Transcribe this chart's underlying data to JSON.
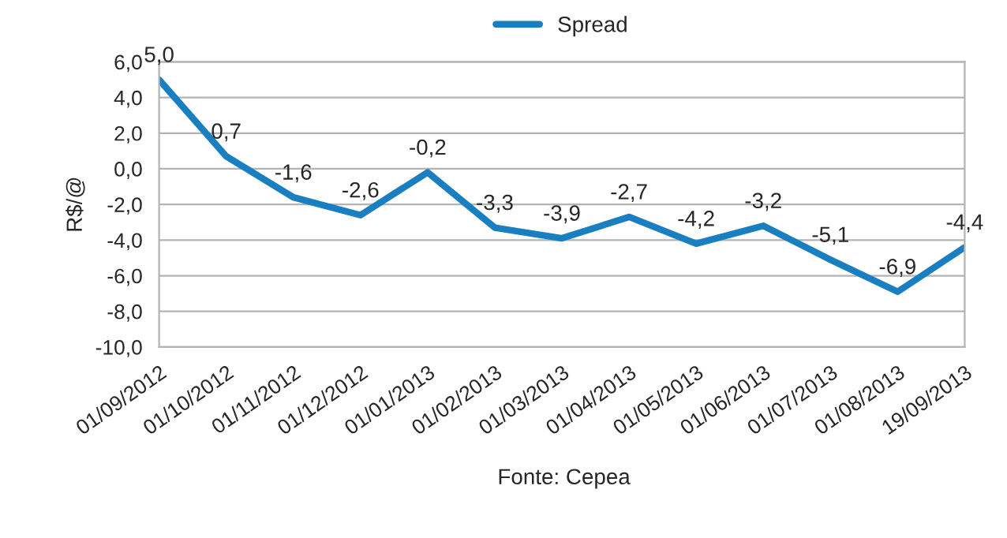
{
  "chart_data": {
    "type": "line",
    "ylabel": "R$/@",
    "categories": [
      "01/09/2012",
      "01/10/2012",
      "01/11/2012",
      "01/12/2012",
      "01/01/2013",
      "01/02/2013",
      "01/03/2013",
      "01/04/2013",
      "01/05/2013",
      "01/06/2013",
      "01/07/2013",
      "01/08/2013",
      "19/09/2013"
    ],
    "series": [
      {
        "name": "Spread",
        "color": "#1a7fc1",
        "values": [
          5.0,
          0.7,
          -1.6,
          -2.6,
          -0.2,
          -3.3,
          -3.9,
          -2.7,
          -4.2,
          -3.2,
          -5.1,
          -6.9,
          -4.4
        ],
        "value_labels": [
          "5,0",
          "0,7",
          "-1,6",
          "-2,6",
          "-0,2",
          "-3,3",
          "-3,9",
          "-2,7",
          "-4,2",
          "-3,2",
          "-5,1",
          "-6,9",
          "-4,4"
        ]
      }
    ],
    "ylim": [
      -10,
      6
    ],
    "yticks": [
      {
        "value": 6,
        "label": "6,0"
      },
      {
        "value": 4,
        "label": "4,0"
      },
      {
        "value": 2,
        "label": "2,0"
      },
      {
        "value": 0,
        "label": "0,0"
      },
      {
        "value": -2,
        "label": "-2,0"
      },
      {
        "value": -4,
        "label": "-4,0"
      },
      {
        "value": -6,
        "label": "-6,0"
      },
      {
        "value": -8,
        "label": "-8,0"
      },
      {
        "value": -10,
        "label": "-10,0"
      }
    ],
    "grid": "y",
    "legend": "top",
    "marker": "none",
    "line_style": "solid",
    "annotations": [
      "Fonte: Cepea"
    ]
  }
}
